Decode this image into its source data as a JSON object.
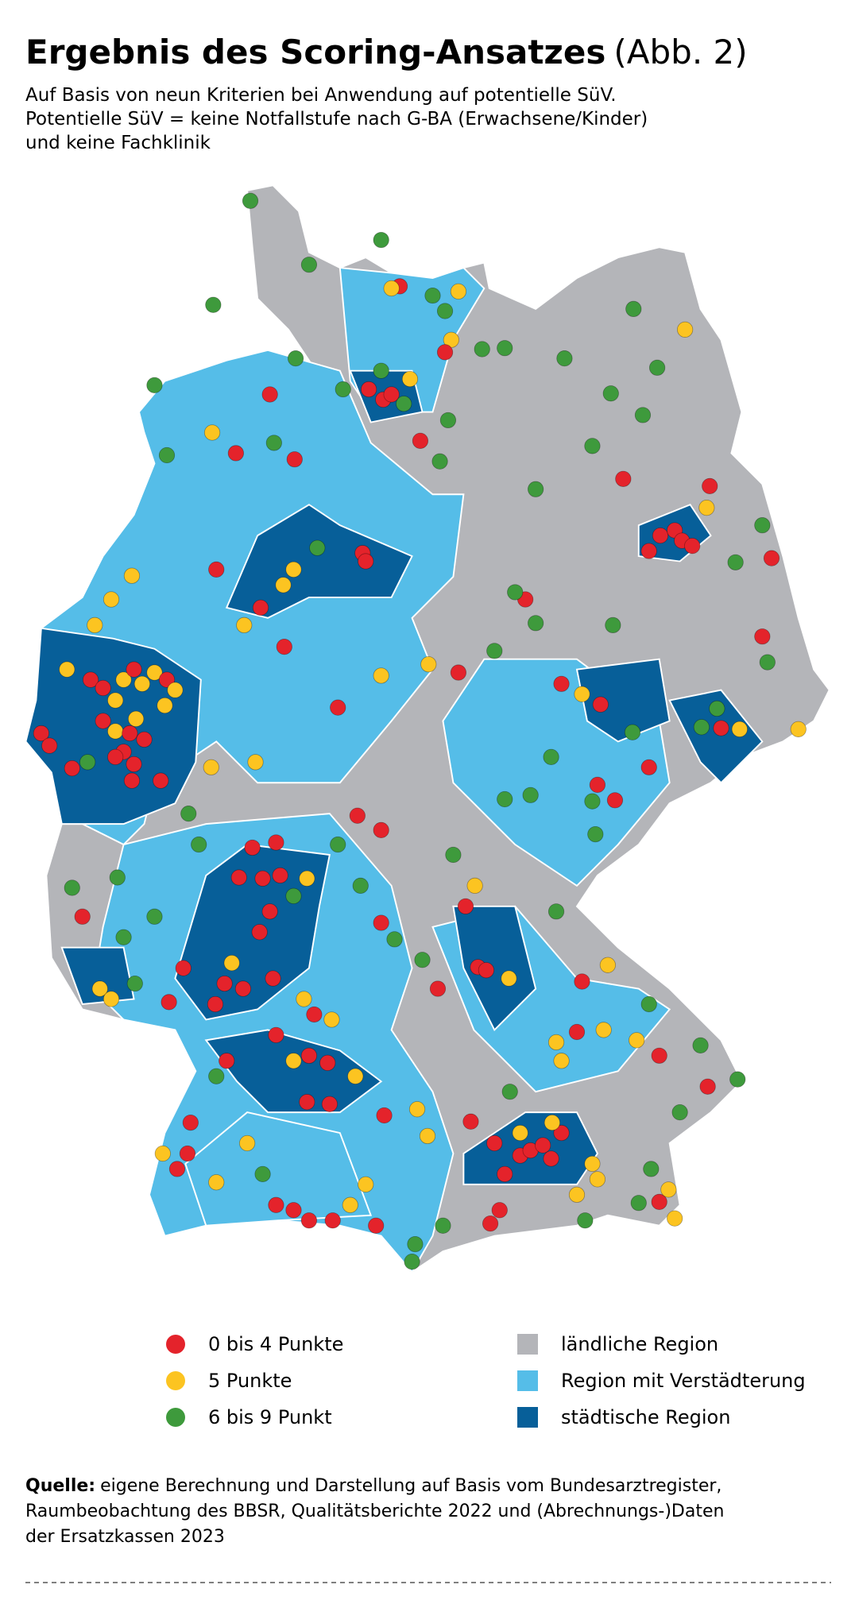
{
  "header": {
    "title": "Ergebnis des Scoring-Ansatzes",
    "title_suffix": "(Abb. 2)",
    "subtitle": [
      "Auf Basis von neun Kriterien bei Anwendung auf potentielle SüV.",
      "Potentielle SüV = keine Notfallstufe nach G-BA (Erwachsene/Kinder)",
      "und keine Fachklinik"
    ]
  },
  "legend": {
    "points": [
      {
        "label": "0 bis 4 Punkte",
        "color": "#e4232b"
      },
      {
        "label": "5 Punkte",
        "color": "#fcc421"
      },
      {
        "label": "6 bis 9 Punkt",
        "color": "#3e9a3c"
      }
    ],
    "regions": [
      {
        "label": "ländliche Region",
        "color": "#b4b5b9"
      },
      {
        "label": "Region mit Verstädterung",
        "color": "#55bde8"
      },
      {
        "label": "städtische Region",
        "color": "#075f99"
      }
    ]
  },
  "source": {
    "label": "Quelle:",
    "lines": [
      "eigene Berechnung und Darstellung auf Basis vom Bundesarztregister,",
      "Raumbeobachtung des BBSR, Qualitätsberichte 2022 und (Abrechnungs-)Daten",
      "der Ersatzkassen 2023"
    ]
  }
}
